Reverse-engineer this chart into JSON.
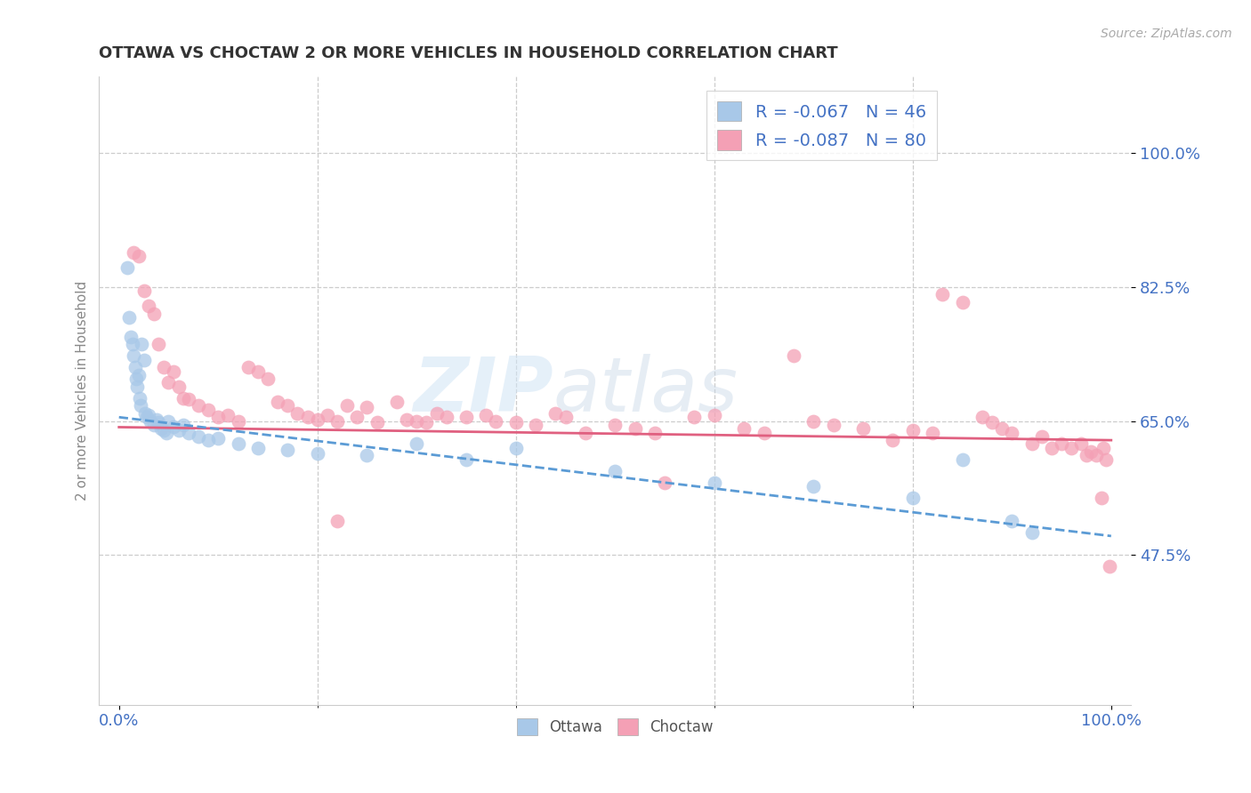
{
  "title": "OTTAWA VS CHOCTAW 2 OR MORE VEHICLES IN HOUSEHOLD CORRELATION CHART",
  "source_text": "Source: ZipAtlas.com",
  "ylabel": "2 or more Vehicles in Household",
  "xlim": [
    -2.0,
    102.0
  ],
  "ylim": [
    28.0,
    110.0
  ],
  "x_ticks": [
    0.0,
    100.0
  ],
  "x_tick_labels": [
    "0.0%",
    "100.0%"
  ],
  "y_ticks": [
    47.5,
    65.0,
    82.5,
    100.0
  ],
  "y_tick_labels": [
    "47.5%",
    "65.0%",
    "82.5%",
    "100.0%"
  ],
  "grid_color": "#cccccc",
  "background_color": "#ffffff",
  "watermark_zip": "ZIP",
  "watermark_atlas": "atlas",
  "ottawa_color": "#a8c8e8",
  "choctaw_color": "#f4a0b5",
  "ottawa_line_color": "#5b9bd5",
  "choctaw_line_color": "#e06080",
  "title_color": "#333333",
  "axis_label_color": "#888888",
  "tick_label_color": "#4472c4",
  "legend_text_color": "#4472c4",
  "legend_r_color": "#e05070",
  "choctaw_trend_start_x": 0,
  "choctaw_trend_start_y": 64.2,
  "choctaw_trend_end_x": 100,
  "choctaw_trend_end_y": 62.5,
  "ottawa_trend_start_x": 0,
  "ottawa_trend_start_y": 65.5,
  "ottawa_trend_end_x": 100,
  "ottawa_trend_end_y": 50.0,
  "ottawa_x": [
    0.8,
    1.0,
    1.2,
    1.4,
    1.5,
    1.6,
    1.7,
    1.8,
    2.0,
    2.1,
    2.2,
    2.3,
    2.5,
    2.6,
    2.8,
    3.0,
    3.2,
    3.5,
    3.8,
    4.0,
    4.2,
    4.5,
    4.8,
    5.0,
    5.5,
    6.0,
    6.5,
    7.0,
    8.0,
    9.0,
    10.0,
    12.0,
    14.0,
    17.0,
    20.0,
    25.0,
    30.0,
    35.0,
    40.0,
    50.0,
    60.0,
    70.0,
    80.0,
    85.0,
    90.0,
    92.0
  ],
  "ottawa_y": [
    85.0,
    78.5,
    76.0,
    75.0,
    73.5,
    72.0,
    70.5,
    69.5,
    71.0,
    68.0,
    67.0,
    75.0,
    73.0,
    66.0,
    65.5,
    65.8,
    65.0,
    64.5,
    65.2,
    64.8,
    64.0,
    63.8,
    63.5,
    65.0,
    64.2,
    63.8,
    64.5,
    63.5,
    63.0,
    62.5,
    62.8,
    62.0,
    61.5,
    61.2,
    60.8,
    60.5,
    62.0,
    60.0,
    61.5,
    58.5,
    57.0,
    56.5,
    55.0,
    60.0,
    52.0,
    50.5
  ],
  "choctaw_x": [
    1.5,
    2.0,
    2.5,
    3.0,
    3.5,
    4.0,
    4.5,
    5.0,
    5.5,
    6.0,
    6.5,
    7.0,
    8.0,
    9.0,
    10.0,
    11.0,
    12.0,
    13.0,
    14.0,
    15.0,
    16.0,
    17.0,
    18.0,
    19.0,
    20.0,
    21.0,
    22.0,
    23.0,
    24.0,
    25.0,
    26.0,
    28.0,
    29.0,
    30.0,
    31.0,
    32.0,
    33.0,
    35.0,
    37.0,
    38.0,
    40.0,
    42.0,
    44.0,
    45.0,
    47.0,
    50.0,
    52.0,
    54.0,
    55.0,
    58.0,
    60.0,
    63.0,
    65.0,
    68.0,
    70.0,
    72.0,
    75.0,
    78.0,
    80.0,
    82.0,
    83.0,
    85.0,
    87.0,
    88.0,
    89.0,
    90.0,
    92.0,
    93.0,
    94.0,
    95.0,
    96.0,
    97.0,
    97.5,
    98.0,
    98.5,
    99.0,
    99.2,
    99.5,
    99.8,
    22.0
  ],
  "choctaw_y": [
    87.0,
    86.5,
    82.0,
    80.0,
    79.0,
    75.0,
    72.0,
    70.0,
    71.5,
    69.5,
    68.0,
    67.8,
    67.0,
    66.5,
    65.5,
    65.8,
    65.0,
    72.0,
    71.5,
    70.5,
    67.5,
    67.0,
    66.0,
    65.5,
    65.2,
    65.8,
    65.0,
    67.0,
    65.5,
    66.8,
    64.8,
    67.5,
    65.2,
    65.0,
    64.8,
    66.0,
    65.5,
    65.5,
    65.8,
    65.0,
    64.8,
    64.5,
    66.0,
    65.5,
    63.5,
    64.5,
    64.0,
    63.5,
    57.0,
    65.5,
    65.8,
    64.0,
    63.5,
    73.5,
    65.0,
    64.5,
    64.0,
    62.5,
    63.8,
    63.5,
    81.5,
    80.5,
    65.5,
    64.8,
    64.0,
    63.5,
    62.0,
    63.0,
    61.5,
    62.0,
    61.5,
    62.0,
    60.5,
    61.0,
    60.5,
    55.0,
    61.5,
    60.0,
    46.0,
    52.0
  ]
}
